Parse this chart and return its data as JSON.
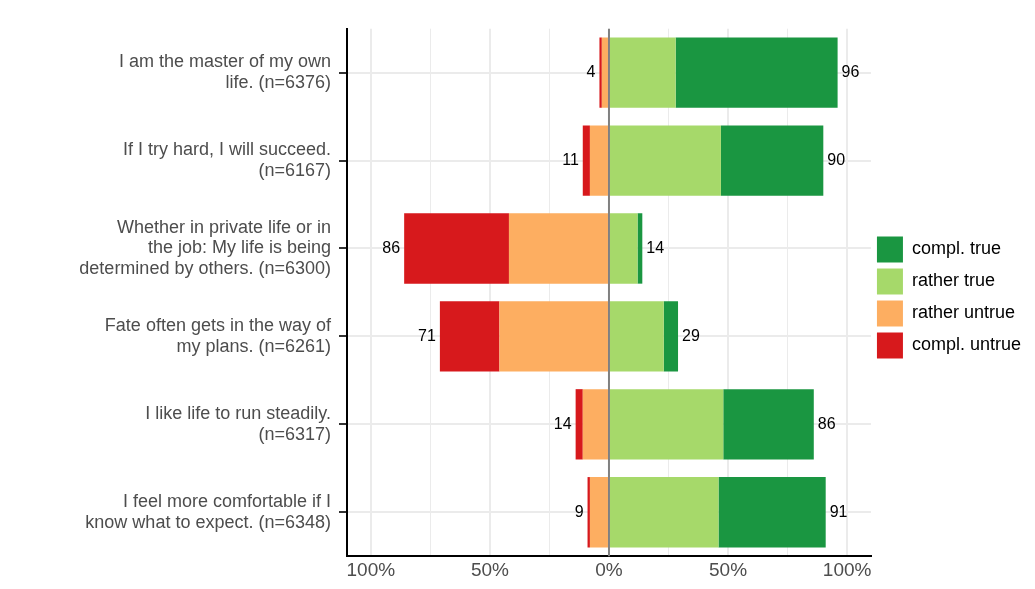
{
  "chart_data": {
    "type": "bar",
    "orientation": "horizontal",
    "stacked": true,
    "categories": [
      "I am the master of my own life. (n=6376)",
      "If I try hard, I will succeed. (n=6167)",
      "Whether in private life or in the job: My life is being determined by others. (n=6300)",
      "Fate often gets in the way of my plans. (n=6261)",
      "I like life to run steadily. (n=6317)",
      "I feel more comfortable if I know what to expect. (n=6348)"
    ],
    "series": [
      {
        "name": "rather true",
        "color": "#a6d96a",
        "values": [
          28,
          47,
          12,
          23,
          48,
          46
        ]
      },
      {
        "name": "compl. true",
        "color": "#1a9641",
        "values": [
          68,
          43,
          2,
          6,
          38,
          45
        ]
      },
      {
        "name": "rather untrue",
        "color": "#fdae61",
        "values": [
          -3,
          -8,
          -42,
          -46,
          -11,
          -8
        ]
      },
      {
        "name": "compl. untrue",
        "color": "#d7191c",
        "values": [
          -1,
          -3,
          -44,
          -25,
          -3,
          -1
        ]
      }
    ],
    "xlim": [
      -110,
      110
    ],
    "xticks": [
      {
        "value": -100,
        "label": "100%"
      },
      {
        "value": -75,
        "label": null
      },
      {
        "value": -50,
        "label": "50%"
      },
      {
        "value": -25,
        "label": null
      },
      {
        "value": 0,
        "label": "0%"
      },
      {
        "value": 25,
        "label": null
      },
      {
        "value": 50,
        "label": "50%"
      },
      {
        "value": 75,
        "label": null
      },
      {
        "value": 100,
        "label": "100%"
      }
    ],
    "grid": true,
    "legend": "right",
    "ref_lines": [
      {
        "axis": "x",
        "value": 0,
        "color": "#808080"
      }
    ],
    "annotations": [
      {
        "text": "4",
        "x": -4,
        "y": "I am the master of my own life. (n=6376)"
      },
      {
        "text": "96",
        "x": 96,
        "y": "I am the master of my own life. (n=6376)"
      },
      {
        "text": "11",
        "x": -11,
        "y": "If I try hard, I will succeed. (n=6167)"
      },
      {
        "text": "90",
        "x": 90,
        "y": "If I try hard, I will succeed. (n=6167)"
      },
      {
        "text": "86",
        "x": -86,
        "y": "Whether in private life or in the job: My life is being determined by others. (n=6300)"
      },
      {
        "text": "14",
        "x": 14,
        "y": "Whether in private life or in the job: My life is being determined by others. (n=6300)"
      },
      {
        "text": "71",
        "x": -71,
        "y": "Fate often gets in the way of my plans. (n=6261)"
      },
      {
        "text": "29",
        "x": 29,
        "y": "Fate often gets in the way of my plans. (n=6261)"
      },
      {
        "text": "14",
        "x": -14,
        "y": "I like life to run steadily. (n=6317)"
      },
      {
        "text": "86",
        "x": 86,
        "y": "I like life to run steadily. (n=6317)"
      },
      {
        "text": "9",
        "x": -9,
        "y": "I feel more comfortable if I know what to expect. (n=6348)"
      },
      {
        "text": "91",
        "x": 91,
        "y": "I feel more comfortable if I know what to expect. (n=6348)"
      }
    ]
  }
}
